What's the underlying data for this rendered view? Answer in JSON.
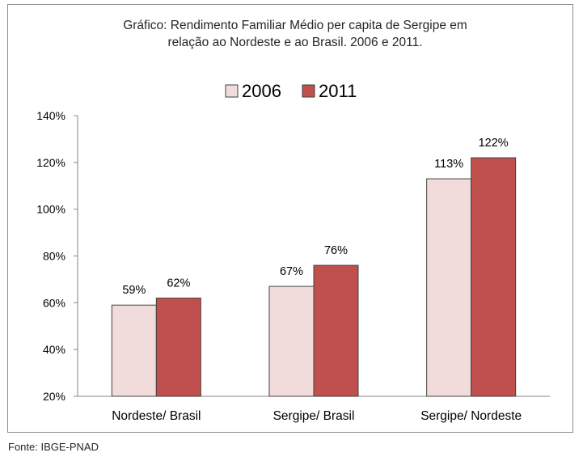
{
  "chart_data": {
    "type": "bar",
    "title": "Gráfico: Rendimento Familiar Médio per capita de Sergipe em relação ao Nordeste e ao Brasil. 2006 e 2011.",
    "title_lines": [
      "Gráfico: Rendimento Familiar Médio per capita de Sergipe em",
      "relação ao Nordeste e ao Brasil. 2006 e 2011."
    ],
    "categories": [
      "Nordeste/ Brasil",
      "Sergipe/ Brasil",
      "Sergipe/ Nordeste"
    ],
    "series": [
      {
        "name": "2006",
        "values": [
          59,
          67,
          113
        ],
        "labels": [
          "59%",
          "67%",
          "113%"
        ],
        "color": "#f2dcdb"
      },
      {
        "name": "2011",
        "values": [
          62,
          76,
          122
        ],
        "labels": [
          "62%",
          "76%",
          "122%"
        ],
        "color": "#c0504d"
      }
    ],
    "ylim": [
      20,
      140
    ],
    "yticks": [
      {
        "value": 140,
        "label": "140%"
      },
      {
        "value": 120,
        "label": "120%"
      },
      {
        "value": 100,
        "label": "100%"
      },
      {
        "value": 80,
        "label": "80%"
      },
      {
        "value": 60,
        "label": "60%"
      },
      {
        "value": 40,
        "label": "40%"
      },
      {
        "value": 20,
        "label": "20%"
      }
    ],
    "legend_position": "top",
    "grid": false
  },
  "colors": {
    "bar_outline": "#404040",
    "axis": "#868686"
  },
  "source": "Fonte: IBGE-PNAD"
}
